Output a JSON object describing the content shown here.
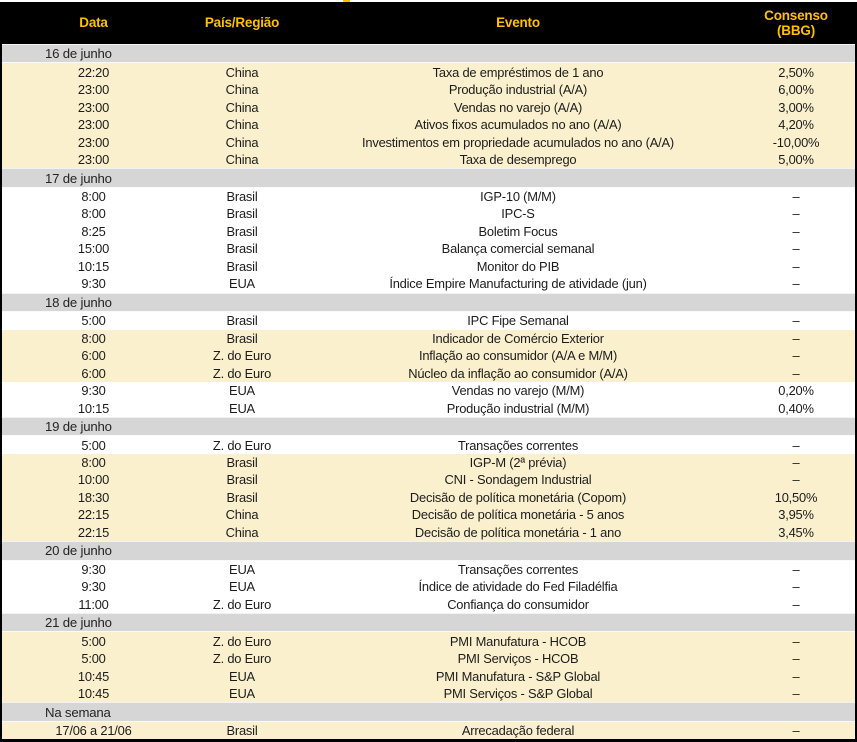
{
  "colors": {
    "header_bg": "#000000",
    "header_text": "#FFC000",
    "section_bg": "#D6D6D6",
    "highlight_row_bg": "#FAF0CD",
    "row_bg": "#FFFFFF"
  },
  "columns": [
    {
      "label": "Data"
    },
    {
      "label": "País/Região"
    },
    {
      "label": "Evento"
    },
    {
      "label": "Consenso",
      "label_line2": "(BBG)"
    }
  ],
  "sections": [
    {
      "title": "16 de junho",
      "rows": [
        {
          "time": "22:20",
          "region": "China",
          "event": "Taxa de empréstimos de 1 ano",
          "consensus": "2,50%",
          "highlight": true
        },
        {
          "time": "23:00",
          "region": "China",
          "event": "Produção industrial (A/A)",
          "consensus": "6,00%",
          "highlight": true
        },
        {
          "time": "23:00",
          "region": "China",
          "event": "Vendas no varejo (A/A)",
          "consensus": "3,00%",
          "highlight": true
        },
        {
          "time": "23:00",
          "region": "China",
          "event": "Ativos fixos acumulados no ano (A/A)",
          "consensus": "4,20%",
          "highlight": true
        },
        {
          "time": "23:00",
          "region": "China",
          "event": "Investimentos em propriedade acumulados no ano (A/A)",
          "consensus": "-10,00%",
          "highlight": true
        },
        {
          "time": "23:00",
          "region": "China",
          "event": "Taxa de desemprego",
          "consensus": "5,00%",
          "highlight": true
        }
      ]
    },
    {
      "title": "17 de junho",
      "rows": [
        {
          "time": "8:00",
          "region": "Brasil",
          "event": "IGP-10 (M/M)",
          "consensus": "–",
          "highlight": false
        },
        {
          "time": "8:00",
          "region": "Brasil",
          "event": "IPC-S",
          "consensus": "–",
          "highlight": false
        },
        {
          "time": "8:25",
          "region": "Brasil",
          "event": "Boletim Focus",
          "consensus": "–",
          "highlight": false
        },
        {
          "time": "15:00",
          "region": "Brasil",
          "event": "Balança comercial semanal",
          "consensus": "–",
          "highlight": false
        },
        {
          "time": "10:15",
          "region": "Brasil",
          "event": "Monitor do PIB",
          "consensus": "–",
          "highlight": false
        },
        {
          "time": "9:30",
          "region": "EUA",
          "event": "Índice Empire Manufacturing de atividade (jun)",
          "consensus": "–",
          "highlight": false
        }
      ]
    },
    {
      "title": "18 de junho",
      "rows": [
        {
          "time": "5:00",
          "region": "Brasil",
          "event": "IPC Fipe Semanal",
          "consensus": "–",
          "highlight": false
        },
        {
          "time": "8:00",
          "region": "Brasil",
          "event": "Indicador de Comércio Exterior",
          "consensus": "–",
          "highlight": true
        },
        {
          "time": "6:00",
          "region": "Z. do Euro",
          "event": "Inflação ao consumidor (A/A e M/M)",
          "consensus": "–",
          "highlight": true
        },
        {
          "time": "6:00",
          "region": "Z. do Euro",
          "event": "Núcleo da inflação ao consumidor (A/A)",
          "consensus": "–",
          "highlight": true
        },
        {
          "time": "9:30",
          "region": "EUA",
          "event": "Vendas no varejo (M/M)",
          "consensus": "0,20%",
          "highlight": false
        },
        {
          "time": "10:15",
          "region": "EUA",
          "event": "Produção industrial (M/M)",
          "consensus": "0,40%",
          "highlight": false
        }
      ]
    },
    {
      "title": "19 de junho",
      "rows": [
        {
          "time": "5:00",
          "region": "Z. do Euro",
          "event": "Transações correntes",
          "consensus": "–",
          "highlight": false
        },
        {
          "time": "8:00",
          "region": "Brasil",
          "event": "IGP-M (2ª prévia)",
          "consensus": "–",
          "highlight": true
        },
        {
          "time": "10:00",
          "region": "Brasil",
          "event": "CNI - Sondagem Industrial",
          "consensus": "–",
          "highlight": true
        },
        {
          "time": "18:30",
          "region": "Brasil",
          "event": "Decisão de política monetária (Copom)",
          "consensus": "10,50%",
          "highlight": true
        },
        {
          "time": "22:15",
          "region": "China",
          "event": "Decisão de política monetária - 5 anos",
          "consensus": "3,95%",
          "highlight": true
        },
        {
          "time": "22:15",
          "region": "China",
          "event": "Decisão de política monetária - 1 ano",
          "consensus": "3,45%",
          "highlight": true
        }
      ]
    },
    {
      "title": "20 de junho",
      "rows": [
        {
          "time": "9:30",
          "region": "EUA",
          "event": "Transações correntes",
          "consensus": "–",
          "highlight": false
        },
        {
          "time": "9:30",
          "region": "EUA",
          "event": "Índice de atividade do Fed Filadélfia",
          "consensus": "–",
          "highlight": false
        },
        {
          "time": "11:00",
          "region": "Z. do Euro",
          "event": "Confiança do consumidor",
          "consensus": "–",
          "highlight": false
        }
      ]
    },
    {
      "title": "21 de junho",
      "rows": [
        {
          "time": "5:00",
          "region": "Z. do Euro",
          "event": "PMI Manufatura - HCOB",
          "consensus": "–",
          "highlight": true
        },
        {
          "time": "5:00",
          "region": "Z. do Euro",
          "event": "PMI Serviços - HCOB",
          "consensus": "–",
          "highlight": true
        },
        {
          "time": "10:45",
          "region": "EUA",
          "event": "PMI Manufatura - S&P Global",
          "consensus": "–",
          "highlight": true
        },
        {
          "time": "10:45",
          "region": "EUA",
          "event": "PMI Serviços - S&P Global",
          "consensus": "–",
          "highlight": true
        }
      ]
    },
    {
      "title": "Na semana",
      "rows": [
        {
          "time": "17/06 a 21/06",
          "region": "Brasil",
          "event": "Arrecadação federal",
          "consensus": "–",
          "highlight": true
        }
      ]
    }
  ]
}
